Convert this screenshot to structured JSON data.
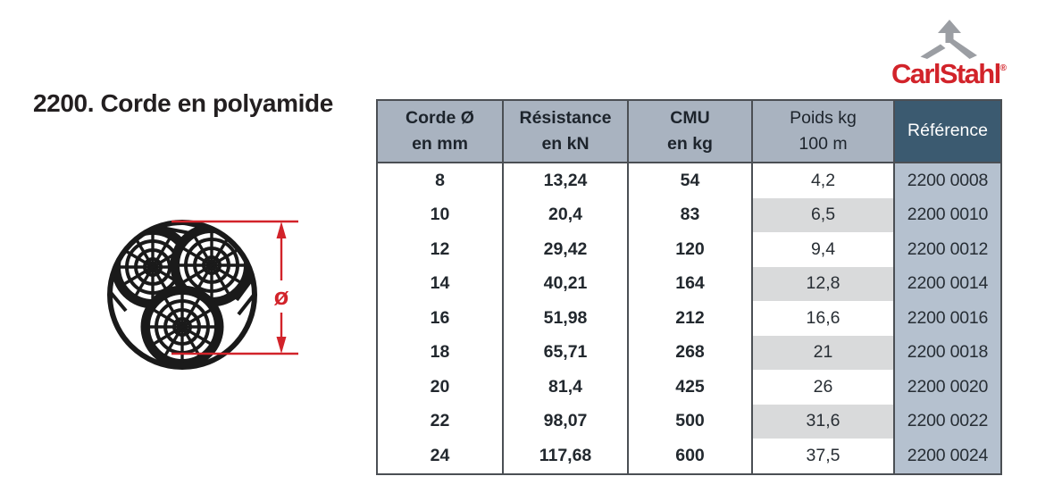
{
  "page": {
    "title": "2200. Corde en polyamide"
  },
  "logo": {
    "brand": "CarlStahl",
    "brand_part1": "Carl",
    "brand_part2": "Stahl",
    "registered_mark": "®",
    "brand_color": "#d2232a",
    "arrow_icon_color": "#9b9ea3"
  },
  "figure": {
    "description": "rope-cross-section-3-strands",
    "diameter_symbol": "ø",
    "dimension_color": "#d2232a",
    "drawing_color": "#1a1a1a"
  },
  "table": {
    "header_bg": "#a9b3c0",
    "reference_header_bg": "#3b5a70",
    "reference_body_bg": "#b5c1cf",
    "stripe_bg": "#d9dadb",
    "border_color": "#4b4f54",
    "headers": [
      {
        "line1": "Corde Ø",
        "line2": "en mm"
      },
      {
        "line1": "Résistance",
        "line2": "en kN"
      },
      {
        "line1": "CMU",
        "line2": "en kg"
      },
      {
        "line1": "Poids kg",
        "line2": "100 m"
      },
      {
        "line1": "Référence",
        "line2": ""
      }
    ],
    "rows": [
      [
        "8",
        "13,24",
        "54",
        "4,2",
        "2200 0008"
      ],
      [
        "10",
        "20,4",
        "83",
        "6,5",
        "2200 0010"
      ],
      [
        "12",
        "29,42",
        "120",
        "9,4",
        "2200 0012"
      ],
      [
        "14",
        "40,21",
        "164",
        "12,8",
        "2200 0014"
      ],
      [
        "16",
        "51,98",
        "212",
        "16,6",
        "2200 0016"
      ],
      [
        "18",
        "65,71",
        "268",
        "21",
        "2200 0018"
      ],
      [
        "20",
        "81,4",
        "425",
        "26",
        "2200 0020"
      ],
      [
        "22",
        "98,07",
        "500",
        "31,6",
        "2200 0022"
      ],
      [
        "24",
        "117,68",
        "600",
        "37,5",
        "2200 0024"
      ]
    ]
  }
}
